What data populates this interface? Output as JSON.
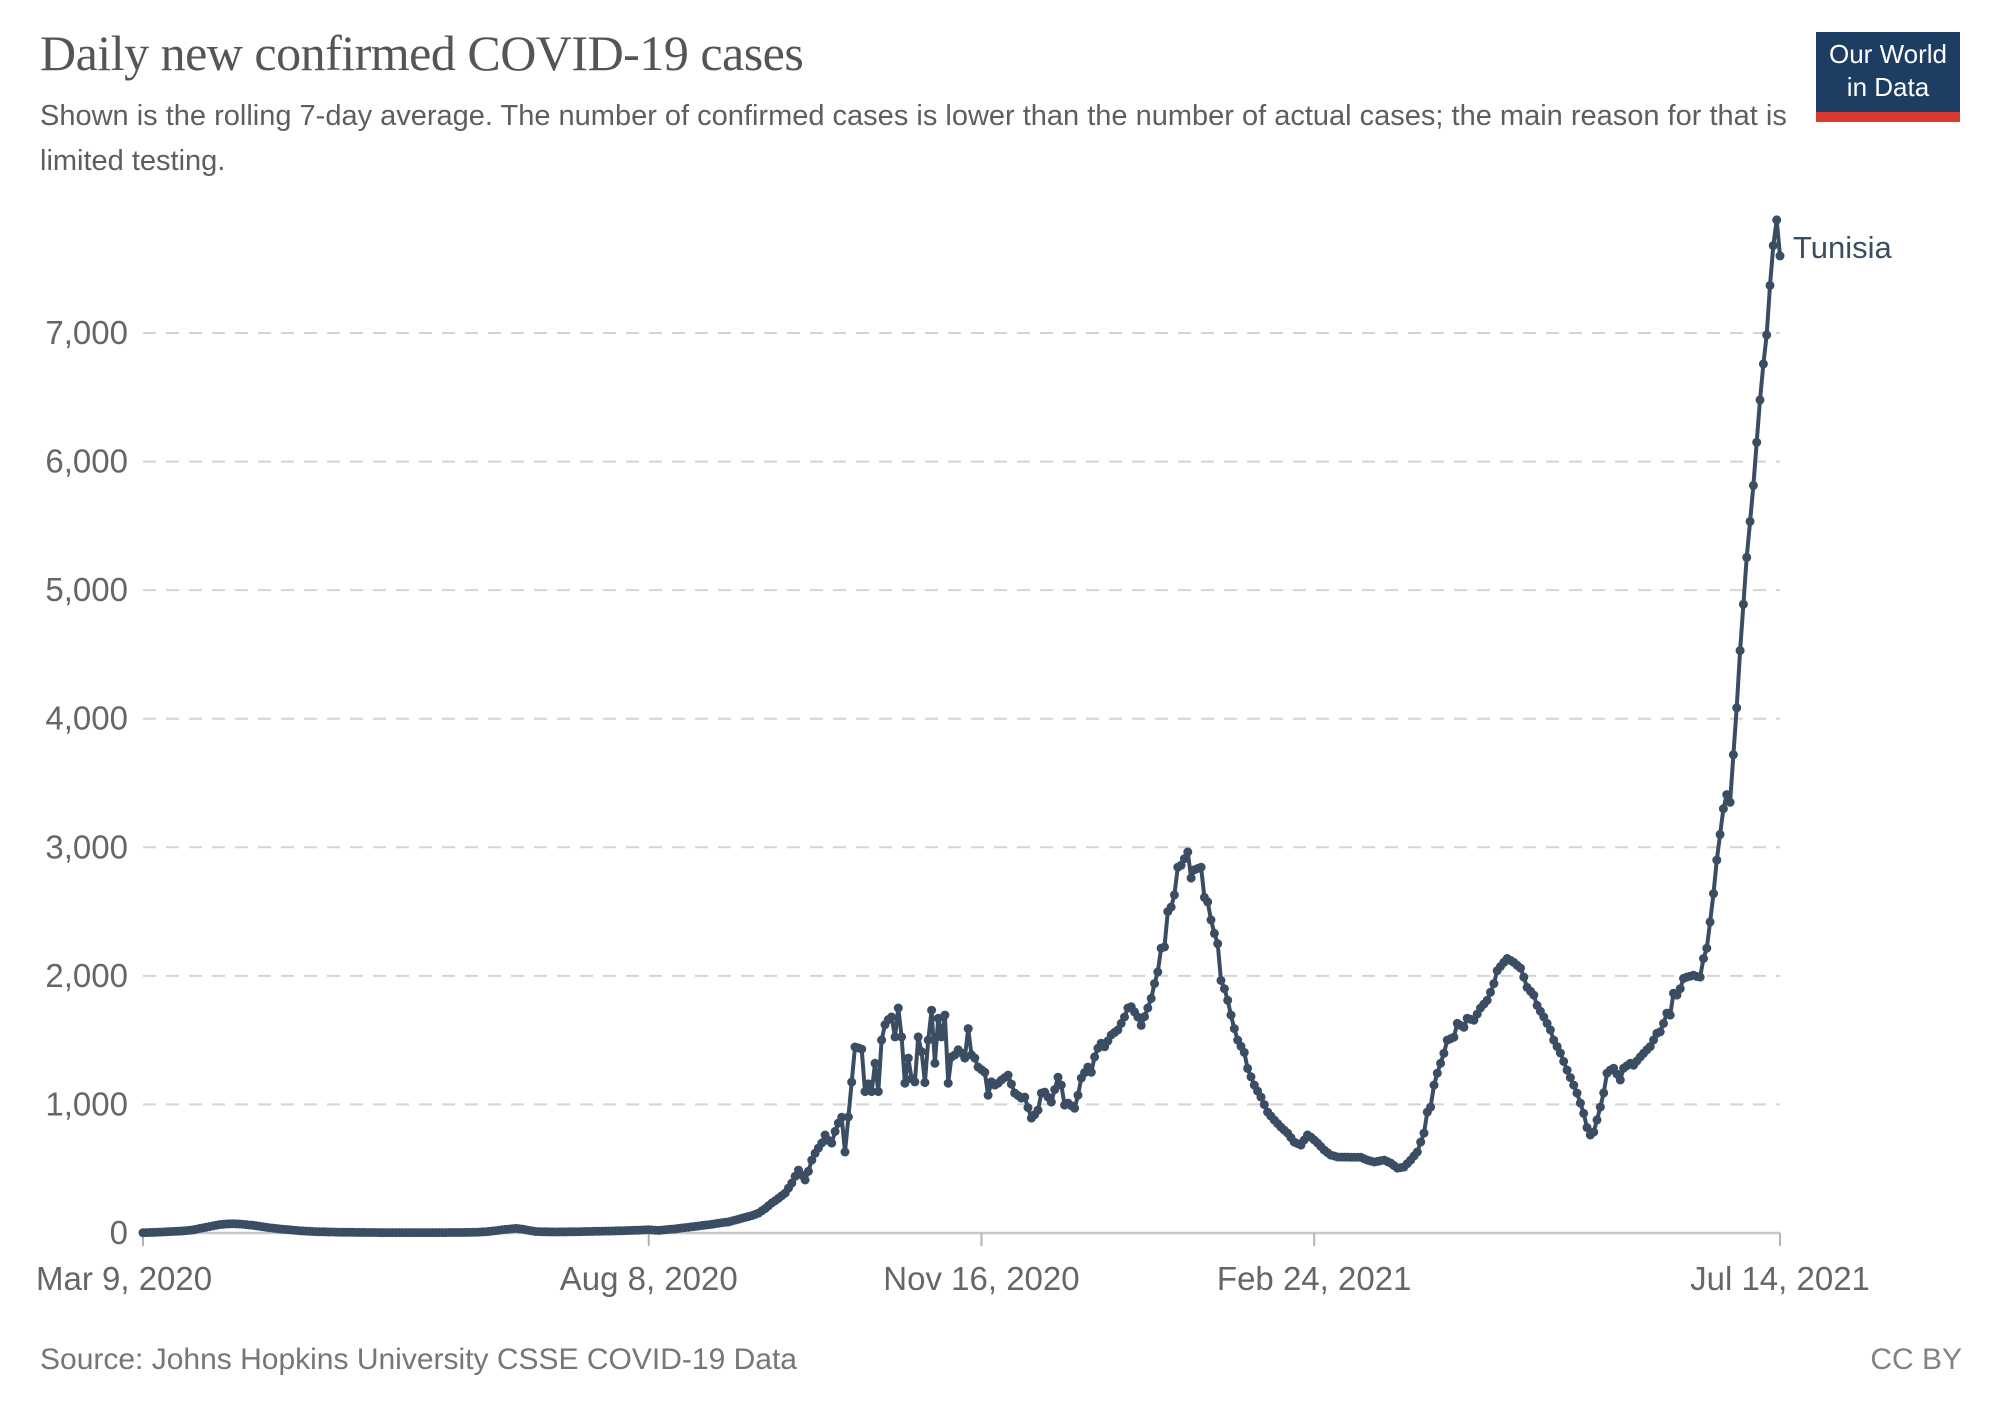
{
  "header": {
    "title": "Daily new confirmed COVID-19 cases",
    "subtitle": "Shown is the rolling 7-day average. The number of confirmed cases is lower than the number of actual cases; the main reason for that is limited testing.",
    "logo": {
      "line1": "Our World",
      "line2": "in Data",
      "bg": "#1d3d63",
      "bar": "#d93a32",
      "text_color": "#ffffff"
    }
  },
  "footer": {
    "source": "Source: Johns Hopkins University CSSE COVID-19 Data",
    "license": "CC BY"
  },
  "chart_data": {
    "type": "line",
    "title": "Daily new confirmed COVID-19 cases",
    "entity": "Tunisia",
    "line_color": "#3a4d63",
    "entity_label_color": "#3a4d63",
    "grid": true,
    "gridline_color": "#d4d4d4",
    "axis_line_color": "#c8c8c8",
    "tick_color": "#b3b3b3",
    "axis_text_color": "#666666",
    "ylim": [
      0,
      7880
    ],
    "y_ticks": [
      {
        "value": 0,
        "label": "0"
      },
      {
        "value": 1000,
        "label": "1,000"
      },
      {
        "value": 2000,
        "label": "2,000"
      },
      {
        "value": 3000,
        "label": "3,000"
      },
      {
        "value": 4000,
        "label": "4,000"
      },
      {
        "value": 5000,
        "label": "5,000"
      },
      {
        "value": 6000,
        "label": "6,000"
      },
      {
        "value": 7000,
        "label": "7,000"
      }
    ],
    "x_ticks": [
      {
        "day": 0,
        "label": "Mar 9, 2020",
        "align": "start"
      },
      {
        "day": 152,
        "label": "Aug 8, 2020",
        "align": "middle"
      },
      {
        "day": 252,
        "label": "Nov 16, 2020",
        "align": "middle"
      },
      {
        "day": 352,
        "label": "Feb 24, 2021",
        "align": "middle"
      },
      {
        "day": 492,
        "label": "Jul 14, 2021",
        "align": "middle"
      }
    ],
    "x_day_range": [
      0,
      492
    ],
    "series": [
      {
        "name": "Tunisia",
        "points": [
          [
            0,
            2
          ],
          [
            3,
            5
          ],
          [
            6,
            8
          ],
          [
            9,
            12
          ],
          [
            12,
            16
          ],
          [
            15,
            24
          ],
          [
            18,
            40
          ],
          [
            21,
            55
          ],
          [
            23,
            65
          ],
          [
            25,
            70
          ],
          [
            27,
            72
          ],
          [
            29,
            70
          ],
          [
            31,
            65
          ],
          [
            33,
            60
          ],
          [
            35,
            52
          ],
          [
            37,
            45
          ],
          [
            39,
            38
          ],
          [
            41,
            32
          ],
          [
            44,
            25
          ],
          [
            47,
            18
          ],
          [
            50,
            13
          ],
          [
            53,
            10
          ],
          [
            56,
            8
          ],
          [
            60,
            6
          ],
          [
            64,
            5
          ],
          [
            68,
            4
          ],
          [
            72,
            3
          ],
          [
            80,
            3
          ],
          [
            88,
            3
          ],
          [
            96,
            4
          ],
          [
            100,
            6
          ],
          [
            103,
            10
          ],
          [
            106,
            18
          ],
          [
            109,
            28
          ],
          [
            112,
            36
          ],
          [
            114,
            30
          ],
          [
            116,
            20
          ],
          [
            118,
            12
          ],
          [
            121,
            9
          ],
          [
            124,
            8
          ],
          [
            128,
            9
          ],
          [
            132,
            11
          ],
          [
            136,
            13
          ],
          [
            140,
            15
          ],
          [
            144,
            18
          ],
          [
            148,
            21
          ],
          [
            152,
            25
          ],
          [
            155,
            20
          ],
          [
            158,
            28
          ],
          [
            160,
            32
          ],
          [
            162,
            39
          ],
          [
            165,
            48
          ],
          [
            168,
            58
          ],
          [
            171,
            68
          ],
          [
            174,
            80
          ],
          [
            176,
            86
          ],
          [
            178,
            100
          ],
          [
            180,
            115
          ],
          [
            183,
            135
          ],
          [
            185,
            155
          ],
          [
            187,
            190
          ],
          [
            189,
            233
          ],
          [
            191,
            270
          ],
          [
            193,
            310
          ],
          [
            195,
            388
          ],
          [
            196,
            440
          ],
          [
            197,
            489
          ],
          [
            199,
            412
          ],
          [
            200,
            480
          ],
          [
            201,
            567
          ],
          [
            202,
            620
          ],
          [
            203,
            660
          ],
          [
            204,
            700
          ],
          [
            205,
            762
          ],
          [
            206,
            720
          ],
          [
            207,
            699
          ],
          [
            208,
            790
          ],
          [
            209,
            855
          ],
          [
            210,
            900
          ],
          [
            211,
            630
          ],
          [
            212,
            902
          ],
          [
            213,
            1174
          ],
          [
            214,
            1447
          ],
          [
            215,
            1440
          ],
          [
            216,
            1430
          ],
          [
            217,
            1100
          ],
          [
            218,
            1160
          ],
          [
            219,
            1100
          ],
          [
            220,
            1320
          ],
          [
            221,
            1100
          ],
          [
            222,
            1500
          ],
          [
            223,
            1620
          ],
          [
            224,
            1660
          ],
          [
            225,
            1680
          ],
          [
            226,
            1525
          ],
          [
            227,
            1750
          ],
          [
            228,
            1525
          ],
          [
            229,
            1165
          ],
          [
            230,
            1360
          ],
          [
            231,
            1200
          ],
          [
            232,
            1175
          ],
          [
            233,
            1525
          ],
          [
            234,
            1410
          ],
          [
            235,
            1170
          ],
          [
            236,
            1500
          ],
          [
            237,
            1733
          ],
          [
            238,
            1320
          ],
          [
            239,
            1670
          ],
          [
            240,
            1525
          ],
          [
            241,
            1695
          ],
          [
            242,
            1165
          ],
          [
            243,
            1370
          ],
          [
            244,
            1385
          ],
          [
            245,
            1425
          ],
          [
            246,
            1400
          ],
          [
            247,
            1360
          ],
          [
            248,
            1590
          ],
          [
            249,
            1385
          ],
          [
            250,
            1360
          ],
          [
            251,
            1290
          ],
          [
            253,
            1250
          ],
          [
            254,
            1072
          ],
          [
            255,
            1175
          ],
          [
            256,
            1150
          ],
          [
            257,
            1165
          ],
          [
            258,
            1190
          ],
          [
            260,
            1228
          ],
          [
            262,
            1088
          ],
          [
            264,
            1049
          ],
          [
            265,
            1057
          ],
          [
            267,
            894
          ],
          [
            268,
            920
          ],
          [
            269,
            956
          ],
          [
            270,
            1088
          ],
          [
            271,
            1096
          ],
          [
            272,
            1057
          ],
          [
            273,
            1018
          ],
          [
            275,
            1212
          ],
          [
            276,
            1150
          ],
          [
            277,
            995
          ],
          [
            278,
            1010
          ],
          [
            280,
            971
          ],
          [
            281,
            1072
          ],
          [
            282,
            1205
          ],
          [
            284,
            1290
          ],
          [
            285,
            1250
          ],
          [
            286,
            1370
          ],
          [
            287,
            1437
          ],
          [
            288,
            1476
          ],
          [
            289,
            1448
          ],
          [
            291,
            1540
          ],
          [
            293,
            1580
          ],
          [
            295,
            1680
          ],
          [
            296,
            1750
          ],
          [
            297,
            1760
          ],
          [
            299,
            1680
          ],
          [
            300,
            1615
          ],
          [
            302,
            1750
          ],
          [
            303,
            1825
          ],
          [
            304,
            1940
          ],
          [
            305,
            2030
          ],
          [
            306,
            2215
          ],
          [
            307,
            2225
          ],
          [
            308,
            2500
          ],
          [
            309,
            2535
          ],
          [
            310,
            2630
          ],
          [
            311,
            2845
          ],
          [
            312,
            2860
          ],
          [
            314,
            2963
          ],
          [
            315,
            2760
          ],
          [
            316,
            2825
          ],
          [
            318,
            2845
          ],
          [
            319,
            2610
          ],
          [
            320,
            2575
          ],
          [
            321,
            2435
          ],
          [
            322,
            2330
          ],
          [
            323,
            2250
          ],
          [
            324,
            1965
          ],
          [
            325,
            1900
          ],
          [
            326,
            1810
          ],
          [
            327,
            1695
          ],
          [
            328,
            1590
          ],
          [
            329,
            1500
          ],
          [
            331,
            1405
          ],
          [
            332,
            1280
          ],
          [
            334,
            1150
          ],
          [
            336,
            1057
          ],
          [
            338,
            940
          ],
          [
            340,
            878
          ],
          [
            342,
            824
          ],
          [
            344,
            777
          ],
          [
            346,
            707
          ],
          [
            348,
            684
          ],
          [
            350,
            762
          ],
          [
            351,
            746
          ],
          [
            353,
            700
          ],
          [
            355,
            645
          ],
          [
            357,
            606
          ],
          [
            359,
            591
          ],
          [
            362,
            590
          ],
          [
            366,
            589
          ],
          [
            368,
            567
          ],
          [
            370,
            552
          ],
          [
            373,
            567
          ],
          [
            375,
            544
          ],
          [
            377,
            505
          ],
          [
            379,
            513
          ],
          [
            381,
            567
          ],
          [
            383,
            630
          ],
          [
            384,
            707
          ],
          [
            385,
            777
          ],
          [
            386,
            940
          ],
          [
            387,
            979
          ],
          [
            388,
            1150
          ],
          [
            389,
            1243
          ],
          [
            390,
            1320
          ],
          [
            391,
            1398
          ],
          [
            392,
            1500
          ],
          [
            394,
            1523
          ],
          [
            395,
            1630
          ],
          [
            397,
            1600
          ],
          [
            398,
            1670
          ],
          [
            400,
            1655
          ],
          [
            402,
            1750
          ],
          [
            404,
            1810
          ],
          [
            405,
            1872
          ],
          [
            406,
            1940
          ],
          [
            407,
            2040
          ],
          [
            409,
            2105
          ],
          [
            410,
            2135
          ],
          [
            412,
            2105
          ],
          [
            414,
            2060
          ],
          [
            415,
            1990
          ],
          [
            416,
            1910
          ],
          [
            418,
            1850
          ],
          [
            419,
            1770
          ],
          [
            421,
            1680
          ],
          [
            423,
            1580
          ],
          [
            424,
            1500
          ],
          [
            426,
            1400
          ],
          [
            428,
            1267
          ],
          [
            430,
            1150
          ],
          [
            431,
            1088
          ],
          [
            432,
            1010
          ],
          [
            433,
            930
          ],
          [
            434,
            820
          ],
          [
            435,
            762
          ],
          [
            436,
            785
          ],
          [
            437,
            880
          ],
          [
            438,
            979
          ],
          [
            439,
            1090
          ],
          [
            440,
            1243
          ],
          [
            441,
            1267
          ],
          [
            442,
            1282
          ],
          [
            444,
            1190
          ],
          [
            445,
            1282
          ],
          [
            447,
            1320
          ],
          [
            448,
            1305
          ],
          [
            450,
            1370
          ],
          [
            452,
            1425
          ],
          [
            453,
            1450
          ],
          [
            455,
            1553
          ],
          [
            456,
            1565
          ],
          [
            457,
            1630
          ],
          [
            458,
            1710
          ],
          [
            459,
            1695
          ],
          [
            460,
            1865
          ],
          [
            461,
            1850
          ],
          [
            462,
            1900
          ],
          [
            463,
            1980
          ],
          [
            464,
            1990
          ],
          [
            466,
            2005
          ],
          [
            467,
            1995
          ],
          [
            468,
            1990
          ],
          [
            469,
            2135
          ],
          [
            470,
            2215
          ],
          [
            471,
            2420
          ],
          [
            472,
            2640
          ],
          [
            473,
            2900
          ],
          [
            474,
            3100
          ],
          [
            475,
            3300
          ],
          [
            476,
            3410
          ],
          [
            477,
            3350
          ],
          [
            478,
            3720
          ],
          [
            479,
            4085
          ],
          [
            480,
            4530
          ],
          [
            481,
            4890
          ],
          [
            482,
            5255
          ],
          [
            483,
            5535
          ],
          [
            484,
            5815
          ],
          [
            485,
            6150
          ],
          [
            486,
            6480
          ],
          [
            487,
            6760
          ],
          [
            488,
            6985
          ],
          [
            489,
            7370
          ],
          [
            490,
            7680
          ],
          [
            491,
            7880
          ],
          [
            492,
            7600
          ]
        ]
      }
    ]
  }
}
